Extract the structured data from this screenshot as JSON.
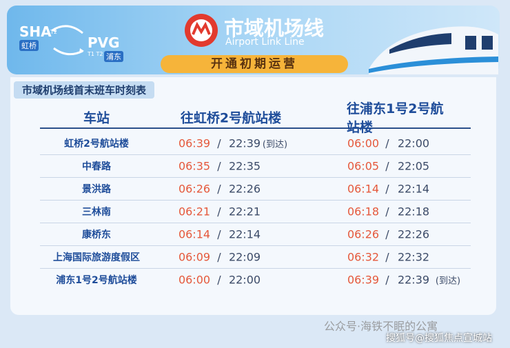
{
  "header": {
    "from_code": "SHA",
    "from_terminal": "T2",
    "from_name": "虹桥",
    "to_code": "PVG",
    "to_terminal": "T1 T2",
    "to_name": "浦东",
    "title": "市域机场线",
    "subtitle": "Airport Link Line",
    "badge": "开通初期运营"
  },
  "table": {
    "title": "市域机场线首末班车时刻表",
    "separator": "/",
    "columns": [
      "车站",
      "往虹桥2号航站楼",
      "往浦东1号2号航站楼"
    ],
    "rows": [
      {
        "station": "虹桥2号航站楼",
        "to_hongqiao": {
          "first": "06:39",
          "last": "22:39",
          "note": "(到达)"
        },
        "to_pudong": {
          "first": "06:00",
          "last": "22:00"
        }
      },
      {
        "station": "中春路",
        "to_hongqiao": {
          "first": "06:35",
          "last": "22:35"
        },
        "to_pudong": {
          "first": "06:05",
          "last": "22:05"
        }
      },
      {
        "station": "景洪路",
        "to_hongqiao": {
          "first": "06:26",
          "last": "22:26"
        },
        "to_pudong": {
          "first": "06:14",
          "last": "22:14"
        }
      },
      {
        "station": "三林南",
        "to_hongqiao": {
          "first": "06:21",
          "last": "22:21"
        },
        "to_pudong": {
          "first": "06:18",
          "last": "22:18"
        }
      },
      {
        "station": "康桥东",
        "to_hongqiao": {
          "first": "06:14",
          "last": "22:14"
        },
        "to_pudong": {
          "first": "06:26",
          "last": "22:26"
        }
      },
      {
        "station": "上海国际旅游度假区",
        "to_hongqiao": {
          "first": "06:09",
          "last": "22:09"
        },
        "to_pudong": {
          "first": "06:32",
          "last": "22:32"
        }
      },
      {
        "station": "浦东1号2号航站楼",
        "to_hongqiao": {
          "first": "06:00",
          "last": "22:00"
        },
        "to_pudong": {
          "first": "06:39",
          "last": "22:39",
          "note": "(到达)"
        }
      }
    ]
  },
  "watermarks": [
    "公众号·海铁不眠的公寓",
    "搜狐号@搜狐焦点宣城站"
  ]
}
